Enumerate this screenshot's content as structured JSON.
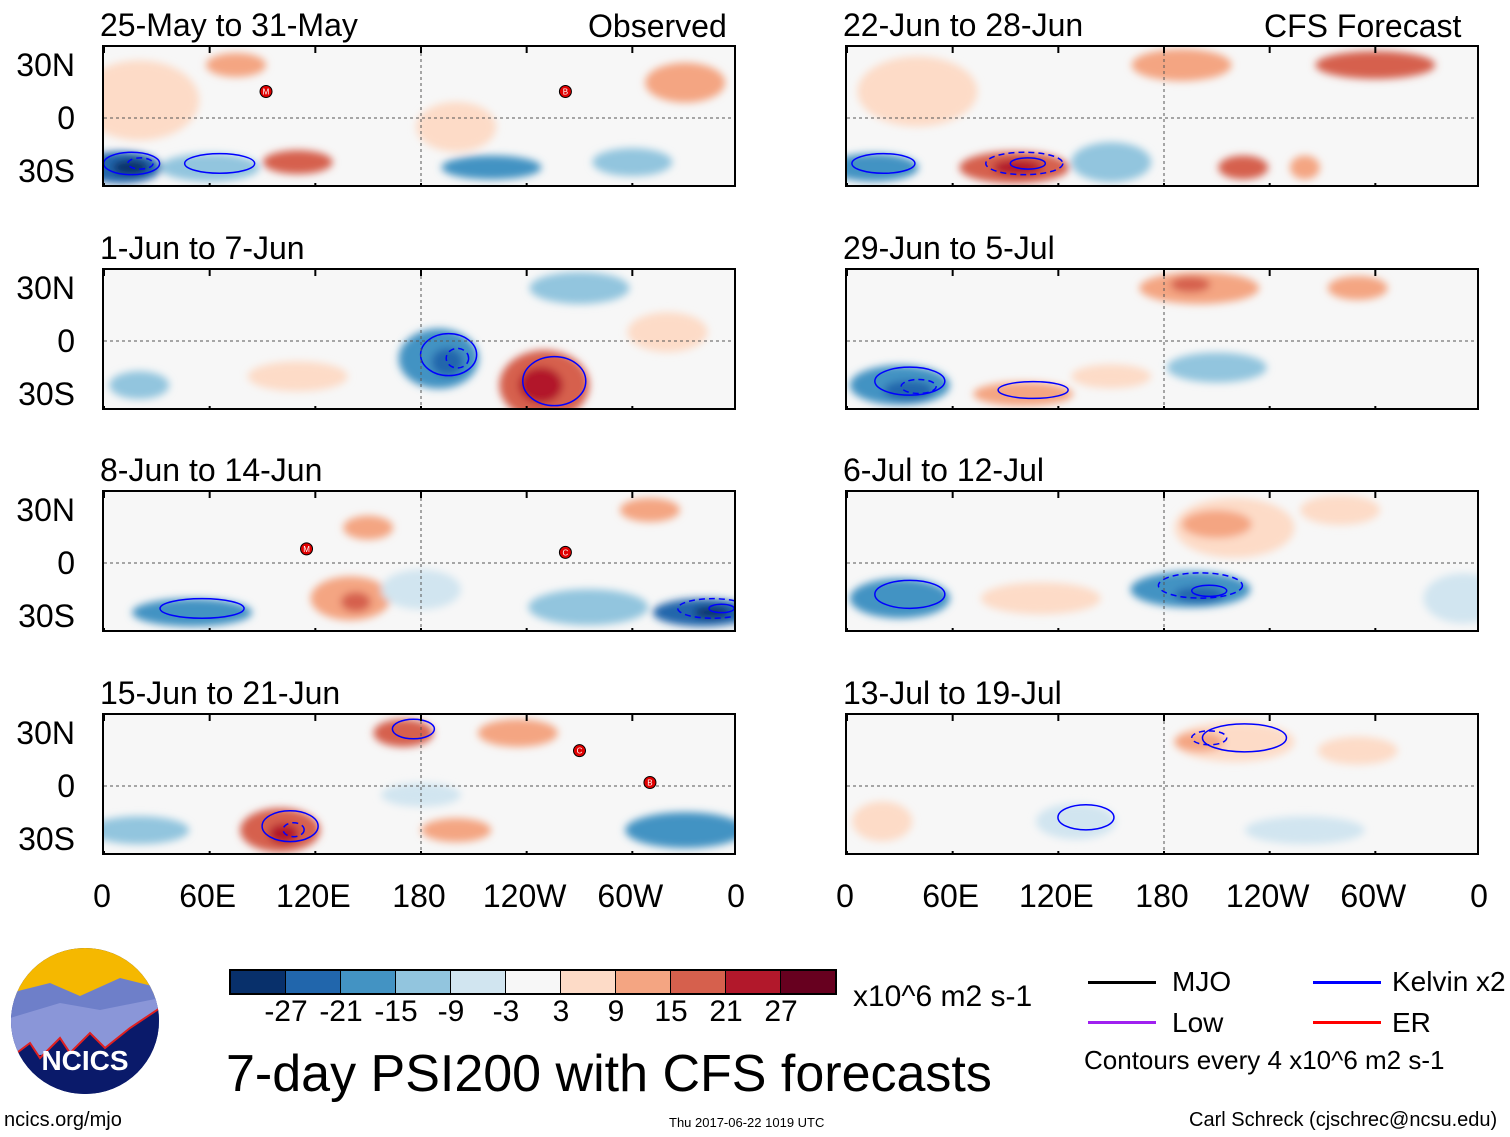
{
  "title": "7-day PSI200 with CFS forecasts",
  "columns": {
    "observed_label": "Observed",
    "forecast_label": "CFS Forecast"
  },
  "panels": [
    {
      "title": "25-May to 31-May",
      "storms": [
        "M",
        "B"
      ]
    },
    {
      "title": "1-Jun to 7-Jun",
      "storms": []
    },
    {
      "title": "8-Jun to 14-Jun",
      "storms": [
        "M",
        "C"
      ]
    },
    {
      "title": "15-Jun to 21-Jun",
      "storms": [
        "C",
        "B"
      ]
    },
    {
      "title": "22-Jun to 28-Jun",
      "storms": []
    },
    {
      "title": "29-Jun to 5-Jul",
      "storms": []
    },
    {
      "title": "6-Jul to 12-Jul",
      "storms": []
    },
    {
      "title": "13-Jul to 19-Jul",
      "storms": []
    }
  ],
  "y_ticks": [
    "30N",
    "0",
    "30S"
  ],
  "x_ticks": [
    "0",
    "60E",
    "120E",
    "180",
    "120W",
    "60W",
    "0"
  ],
  "colorbar": {
    "colors": [
      "#08306b",
      "#2166ac",
      "#4393c3",
      "#92c5de",
      "#d1e5f0",
      "#f7f7f7",
      "#fddbc7",
      "#f4a582",
      "#d6604d",
      "#b2182b",
      "#67001f"
    ],
    "labels": [
      "-27",
      "-21",
      "-15",
      "-9",
      "-3",
      "3",
      "9",
      "15",
      "21",
      "27"
    ],
    "units": "x10^6 m2 s-1"
  },
  "legend": {
    "items": [
      {
        "label": "MJO",
        "color": "#000000"
      },
      {
        "label": "Kelvin x2",
        "color": "#0000ff"
      },
      {
        "label": "Low",
        "color": "#a020f0"
      },
      {
        "label": "ER",
        "color": "#ff0000"
      }
    ],
    "contours_note": "Contours every 4 x10^6 m2 s-1"
  },
  "logo": {
    "text": "NCICS"
  },
  "footer": {
    "url": "ncics.org/mjo",
    "timestamp": "Thu 2017-06-22 1019 UTC",
    "credit": "Carl Schreck (cjschrec@ncsu.edu)"
  }
}
